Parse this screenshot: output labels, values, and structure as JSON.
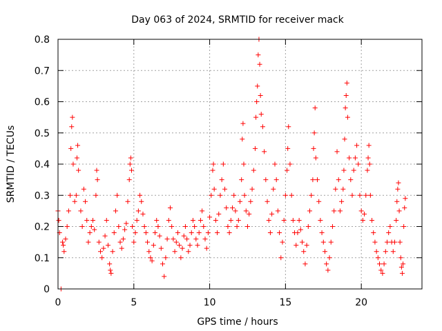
{
  "chart_data": {
    "type": "scatter",
    "title": "Day 063 of 2024, SRMTID for receiver mack",
    "xlabel": "GPS time / hours",
    "ylabel": "SRMTID / TECUs",
    "xlim": [
      0,
      24
    ],
    "ylim": [
      0,
      0.8
    ],
    "x_ticks": [
      0,
      5,
      10,
      15,
      20
    ],
    "x_tick_labels": [
      "0",
      "5",
      "10",
      "15",
      "20"
    ],
    "y_ticks": [
      0,
      0.1,
      0.2,
      0.3,
      0.4,
      0.5,
      0.6,
      0.7,
      0.8
    ],
    "y_tick_labels": [
      "0",
      "0.1",
      "0.2",
      "0.3",
      "0.4",
      "0.5",
      "0.6",
      "0.7",
      "0.8"
    ],
    "grid": true,
    "marker": "+",
    "color": "#ff0000",
    "grid_color": "#a0a0a0",
    "series": [
      {
        "name": "SRMTID",
        "points": [
          [
            0.0,
            0.25
          ],
          [
            0.05,
            0.22
          ],
          [
            0.1,
            0.18
          ],
          [
            0.2,
            0.0
          ],
          [
            0.3,
            0.15
          ],
          [
            0.35,
            0.14
          ],
          [
            0.4,
            0.12
          ],
          [
            0.5,
            0.16
          ],
          [
            0.6,
            0.2
          ],
          [
            0.7,
            0.25
          ],
          [
            0.8,
            0.3
          ],
          [
            0.85,
            0.45
          ],
          [
            0.9,
            0.52
          ],
          [
            0.95,
            0.55
          ],
          [
            1.0,
            0.4
          ],
          [
            1.1,
            0.28
          ],
          [
            1.2,
            0.3
          ],
          [
            1.25,
            0.42
          ],
          [
            1.3,
            0.46
          ],
          [
            1.35,
            0.38
          ],
          [
            1.5,
            0.25
          ],
          [
            1.6,
            0.2
          ],
          [
            1.7,
            0.32
          ],
          [
            1.8,
            0.28
          ],
          [
            1.9,
            0.22
          ],
          [
            2.0,
            0.15
          ],
          [
            2.1,
            0.18
          ],
          [
            2.2,
            0.2
          ],
          [
            2.3,
            0.22
          ],
          [
            2.4,
            0.19
          ],
          [
            2.5,
            0.3
          ],
          [
            2.55,
            0.38
          ],
          [
            2.6,
            0.35
          ],
          [
            2.7,
            0.15
          ],
          [
            2.8,
            0.12
          ],
          [
            2.9,
            0.1
          ],
          [
            3.0,
            0.13
          ],
          [
            3.1,
            0.17
          ],
          [
            3.2,
            0.22
          ],
          [
            3.3,
            0.14
          ],
          [
            3.4,
            0.08
          ],
          [
            3.45,
            0.06
          ],
          [
            3.5,
            0.05
          ],
          [
            3.6,
            0.12
          ],
          [
            3.7,
            0.18
          ],
          [
            3.8,
            0.25
          ],
          [
            3.9,
            0.3
          ],
          [
            4.0,
            0.2
          ],
          [
            4.1,
            0.15
          ],
          [
            4.2,
            0.13
          ],
          [
            4.3,
            0.16
          ],
          [
            4.4,
            0.19
          ],
          [
            4.5,
            0.21
          ],
          [
            4.6,
            0.28
          ],
          [
            4.7,
            0.35
          ],
          [
            4.75,
            0.4
          ],
          [
            4.8,
            0.42
          ],
          [
            4.85,
            0.38
          ],
          [
            4.9,
            0.2
          ],
          [
            5.0,
            0.15
          ],
          [
            5.1,
            0.18
          ],
          [
            5.2,
            0.22
          ],
          [
            5.3,
            0.25
          ],
          [
            5.4,
            0.3
          ],
          [
            5.5,
            0.28
          ],
          [
            5.6,
            0.24
          ],
          [
            5.7,
            0.2
          ],
          [
            5.8,
            0.18
          ],
          [
            5.9,
            0.15
          ],
          [
            6.0,
            0.12
          ],
          [
            6.1,
            0.1
          ],
          [
            6.2,
            0.09
          ],
          [
            6.3,
            0.14
          ],
          [
            6.4,
            0.18
          ],
          [
            6.5,
            0.22
          ],
          [
            6.6,
            0.2
          ],
          [
            6.7,
            0.17
          ],
          [
            6.8,
            0.13
          ],
          [
            6.9,
            0.08
          ],
          [
            7.0,
            0.04
          ],
          [
            7.1,
            0.1
          ],
          [
            7.2,
            0.16
          ],
          [
            7.3,
            0.22
          ],
          [
            7.4,
            0.26
          ],
          [
            7.5,
            0.2
          ],
          [
            7.6,
            0.16
          ],
          [
            7.7,
            0.12
          ],
          [
            7.8,
            0.15
          ],
          [
            7.9,
            0.18
          ],
          [
            8.0,
            0.14
          ],
          [
            8.1,
            0.1
          ],
          [
            8.2,
            0.13
          ],
          [
            8.3,
            0.17
          ],
          [
            8.4,
            0.2
          ],
          [
            8.5,
            0.16
          ],
          [
            8.6,
            0.12
          ],
          [
            8.7,
            0.14
          ],
          [
            8.8,
            0.18
          ],
          [
            8.9,
            0.22
          ],
          [
            9.0,
            0.2
          ],
          [
            9.1,
            0.16
          ],
          [
            9.2,
            0.14
          ],
          [
            9.3,
            0.18
          ],
          [
            9.4,
            0.22
          ],
          [
            9.5,
            0.25
          ],
          [
            9.6,
            0.2
          ],
          [
            9.7,
            0.16
          ],
          [
            9.8,
            0.13
          ],
          [
            9.9,
            0.18
          ],
          [
            10.0,
            0.23
          ],
          [
            10.1,
            0.3
          ],
          [
            10.2,
            0.38
          ],
          [
            10.25,
            0.4
          ],
          [
            10.3,
            0.32
          ],
          [
            10.4,
            0.22
          ],
          [
            10.5,
            0.18
          ],
          [
            10.6,
            0.24
          ],
          [
            10.7,
            0.3
          ],
          [
            10.8,
            0.35
          ],
          [
            10.9,
            0.4
          ],
          [
            11.0,
            0.32
          ],
          [
            11.1,
            0.26
          ],
          [
            11.2,
            0.2
          ],
          [
            11.3,
            0.18
          ],
          [
            11.4,
            0.22
          ],
          [
            11.5,
            0.26
          ],
          [
            11.6,
            0.3
          ],
          [
            11.7,
            0.25
          ],
          [
            11.8,
            0.2
          ],
          [
            11.9,
            0.22
          ],
          [
            12.0,
            0.28
          ],
          [
            12.1,
            0.35
          ],
          [
            12.15,
            0.48
          ],
          [
            12.2,
            0.53
          ],
          [
            12.25,
            0.4
          ],
          [
            12.3,
            0.3
          ],
          [
            12.4,
            0.25
          ],
          [
            12.5,
            0.2
          ],
          [
            12.6,
            0.24
          ],
          [
            12.7,
            0.28
          ],
          [
            12.8,
            0.32
          ],
          [
            12.9,
            0.38
          ],
          [
            13.0,
            0.45
          ],
          [
            13.05,
            0.55
          ],
          [
            13.1,
            0.6
          ],
          [
            13.15,
            0.65
          ],
          [
            13.2,
            0.75
          ],
          [
            13.25,
            0.8
          ],
          [
            13.3,
            0.72
          ],
          [
            13.35,
            0.62
          ],
          [
            13.4,
            0.56
          ],
          [
            13.5,
            0.52
          ],
          [
            13.6,
            0.44
          ],
          [
            13.7,
            0.35
          ],
          [
            13.8,
            0.28
          ],
          [
            13.9,
            0.22
          ],
          [
            14.0,
            0.18
          ],
          [
            14.1,
            0.24
          ],
          [
            14.2,
            0.32
          ],
          [
            14.3,
            0.4
          ],
          [
            14.4,
            0.35
          ],
          [
            14.5,
            0.25
          ],
          [
            14.6,
            0.18
          ],
          [
            14.7,
            0.1
          ],
          [
            14.8,
            0.15
          ],
          [
            14.9,
            0.22
          ],
          [
            15.0,
            0.3
          ],
          [
            15.1,
            0.38
          ],
          [
            15.15,
            0.45
          ],
          [
            15.2,
            0.52
          ],
          [
            15.3,
            0.4
          ],
          [
            15.4,
            0.3
          ],
          [
            15.5,
            0.22
          ],
          [
            15.6,
            0.18
          ],
          [
            15.7,
            0.14
          ],
          [
            15.8,
            0.18
          ],
          [
            15.9,
            0.22
          ],
          [
            16.0,
            0.19
          ],
          [
            16.1,
            0.15
          ],
          [
            16.2,
            0.12
          ],
          [
            16.3,
            0.08
          ],
          [
            16.4,
            0.14
          ],
          [
            16.5,
            0.2
          ],
          [
            16.6,
            0.25
          ],
          [
            16.7,
            0.3
          ],
          [
            16.8,
            0.35
          ],
          [
            16.85,
            0.45
          ],
          [
            16.9,
            0.5
          ],
          [
            16.95,
            0.58
          ],
          [
            17.0,
            0.42
          ],
          [
            17.1,
            0.35
          ],
          [
            17.2,
            0.28
          ],
          [
            17.3,
            0.22
          ],
          [
            17.4,
            0.18
          ],
          [
            17.5,
            0.15
          ],
          [
            17.6,
            0.12
          ],
          [
            17.7,
            0.08
          ],
          [
            17.8,
            0.06
          ],
          [
            17.9,
            0.1
          ],
          [
            18.0,
            0.15
          ],
          [
            18.1,
            0.2
          ],
          [
            18.2,
            0.25
          ],
          [
            18.3,
            0.32
          ],
          [
            18.4,
            0.44
          ],
          [
            18.5,
            0.35
          ],
          [
            18.6,
            0.25
          ],
          [
            18.7,
            0.28
          ],
          [
            18.8,
            0.32
          ],
          [
            18.85,
            0.38
          ],
          [
            18.9,
            0.48
          ],
          [
            18.95,
            0.58
          ],
          [
            19.0,
            0.62
          ],
          [
            19.05,
            0.66
          ],
          [
            19.1,
            0.55
          ],
          [
            19.2,
            0.42
          ],
          [
            19.3,
            0.35
          ],
          [
            19.4,
            0.3
          ],
          [
            19.5,
            0.38
          ],
          [
            19.6,
            0.42
          ],
          [
            19.7,
            0.46
          ],
          [
            19.8,
            0.4
          ],
          [
            19.9,
            0.3
          ],
          [
            20.0,
            0.25
          ],
          [
            20.1,
            0.22
          ],
          [
            20.2,
            0.24
          ],
          [
            20.3,
            0.3
          ],
          [
            20.4,
            0.38
          ],
          [
            20.45,
            0.42
          ],
          [
            20.5,
            0.46
          ],
          [
            20.55,
            0.4
          ],
          [
            20.6,
            0.3
          ],
          [
            20.7,
            0.22
          ],
          [
            20.8,
            0.18
          ],
          [
            20.9,
            0.15
          ],
          [
            21.0,
            0.12
          ],
          [
            21.1,
            0.1
          ],
          [
            21.2,
            0.08
          ],
          [
            21.3,
            0.06
          ],
          [
            21.4,
            0.05
          ],
          [
            21.5,
            0.08
          ],
          [
            21.6,
            0.12
          ],
          [
            21.7,
            0.15
          ],
          [
            21.8,
            0.18
          ],
          [
            21.9,
            0.2
          ],
          [
            22.0,
            0.15
          ],
          [
            22.1,
            0.12
          ],
          [
            22.2,
            0.15
          ],
          [
            22.3,
            0.22
          ],
          [
            22.35,
            0.28
          ],
          [
            22.4,
            0.32
          ],
          [
            22.45,
            0.34
          ],
          [
            22.5,
            0.25
          ],
          [
            22.55,
            0.15
          ],
          [
            22.6,
            0.1
          ],
          [
            22.65,
            0.07
          ],
          [
            22.7,
            0.05
          ],
          [
            22.75,
            0.08
          ],
          [
            22.8,
            0.2
          ],
          [
            22.85,
            0.26
          ],
          [
            22.9,
            0.29
          ]
        ]
      }
    ]
  }
}
